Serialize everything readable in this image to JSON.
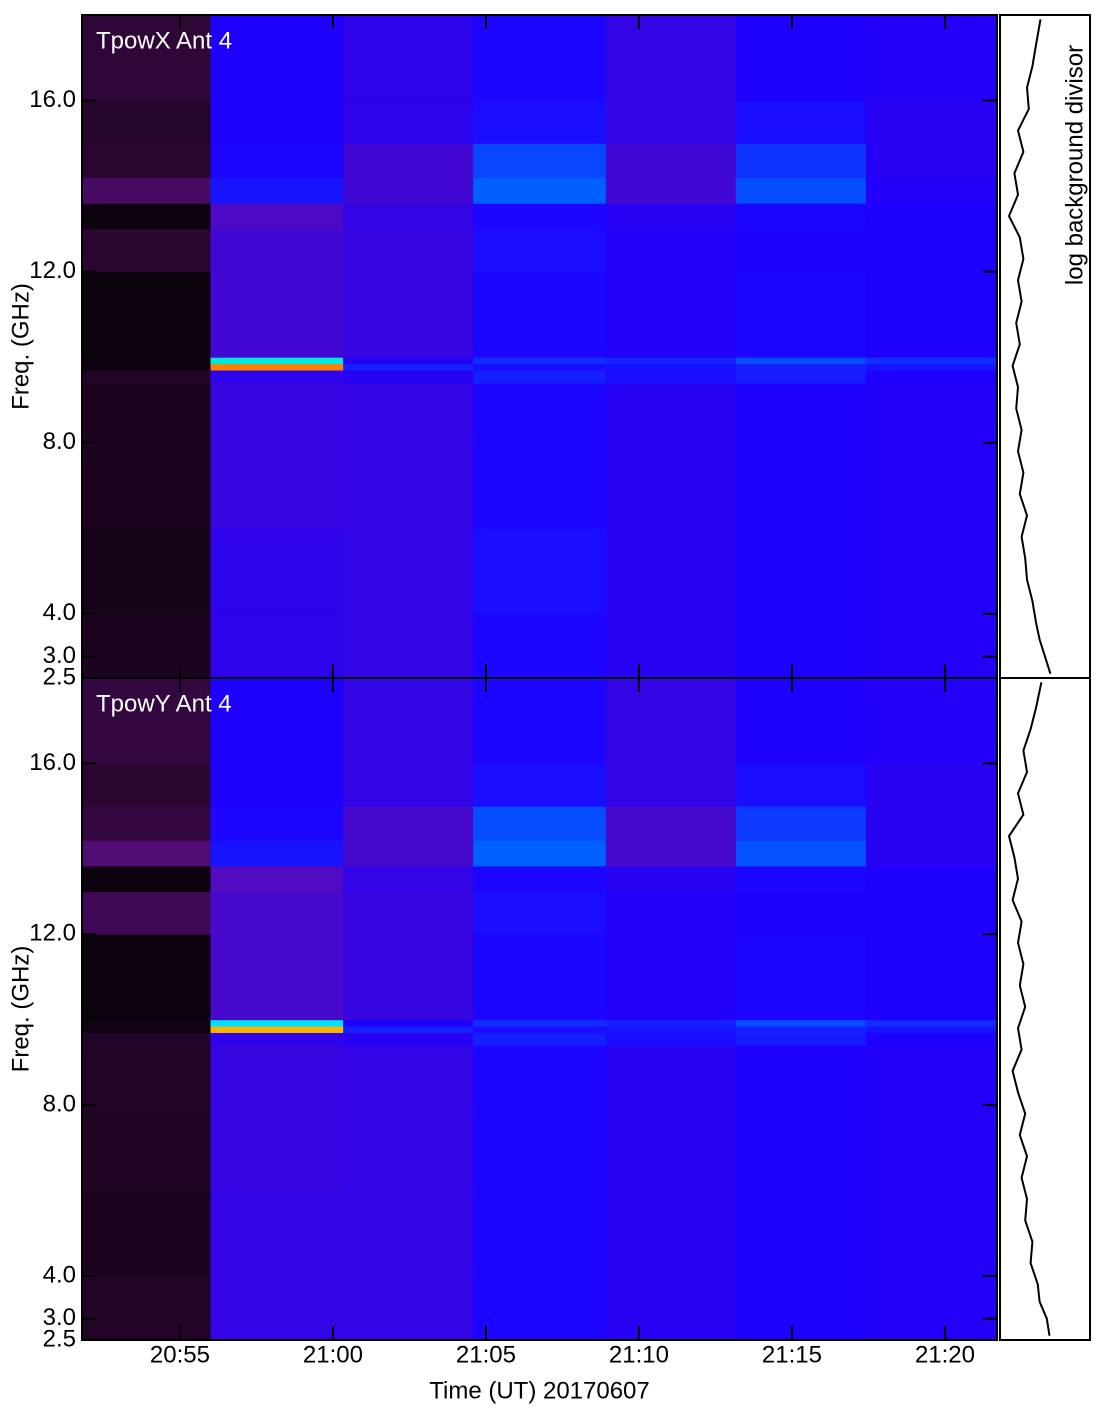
{
  "chart_data": [
    {
      "type": "heatmap",
      "title": "TpowX Ant 4",
      "ylabel": "Freq. (GHz)",
      "xlim": [
        "20:51:48",
        "21:21:42"
      ],
      "xticks": [
        "20:55",
        "21:00",
        "21:05",
        "21:10",
        "21:15",
        "21:20"
      ],
      "ylim": [
        2.5,
        18
      ],
      "yticks": [
        {
          "value": 2.5,
          "label": "2.5"
        },
        {
          "value": 3,
          "label": "3.0"
        },
        {
          "value": 4,
          "label": "4.0"
        },
        {
          "value": 8,
          "label": "8.0"
        },
        {
          "value": 12,
          "label": "12.0"
        },
        {
          "value": 16,
          "label": "16.0"
        }
      ],
      "x_edges": [
        "20:51:48",
        "20:56:00",
        "21:00:20",
        "21:04:35",
        "21:08:55",
        "21:13:10",
        "21:17:25",
        "21:21:42"
      ],
      "y_edges": [
        2.5,
        4,
        6,
        8,
        9.4,
        9.7,
        9.85,
        10,
        12,
        13,
        13.6,
        14.2,
        15,
        16,
        18
      ],
      "colorscale": {
        "stops": [
          0,
          0.15,
          0.3,
          0.45,
          0.6,
          0.7,
          0.8,
          0.9,
          1
        ],
        "colors": [
          "#000000",
          "#2a0630",
          "#6a10a0",
          "#1e00ff",
          "#0060ff",
          "#00e0ff",
          "#00ff40",
          "#ffff00",
          "#ff0000"
        ]
      },
      "z": [
        [
          0.1,
          0.08,
          0.1,
          0.1,
          0.12,
          0.05,
          0.05,
          0.04,
          0.15,
          0.05,
          0.22,
          0.15,
          0.14,
          0.16
        ],
        [
          0.42,
          0.42,
          0.4,
          0.4,
          0.42,
          0.95,
          0.72,
          0.38,
          0.38,
          0.36,
          0.48,
          0.46,
          0.45,
          0.45
        ],
        [
          0.41,
          0.41,
          0.41,
          0.41,
          0.43,
          0.5,
          0.44,
          0.4,
          0.4,
          0.41,
          0.38,
          0.38,
          0.42,
          0.42
        ],
        [
          0.46,
          0.47,
          0.46,
          0.46,
          0.5,
          0.47,
          0.52,
          0.46,
          0.47,
          0.46,
          0.6,
          0.56,
          0.47,
          0.46
        ],
        [
          0.43,
          0.43,
          0.43,
          0.43,
          0.47,
          0.48,
          0.5,
          0.44,
          0.44,
          0.43,
          0.38,
          0.38,
          0.41,
          0.41
        ],
        [
          0.45,
          0.45,
          0.45,
          0.45,
          0.49,
          0.5,
          0.57,
          0.46,
          0.45,
          0.46,
          0.57,
          0.53,
          0.47,
          0.45
        ],
        [
          0.44,
          0.44,
          0.44,
          0.44,
          0.45,
          0.48,
          0.52,
          0.45,
          0.45,
          0.45,
          0.44,
          0.43,
          0.43,
          0.44
        ]
      ],
      "profile": {
        "label": "log background divisor",
        "xlim": [
          0,
          1
        ],
        "y": [
          2.6,
          3.0,
          3.4,
          3.8,
          4.3,
          4.8,
          5.3,
          5.8,
          6.3,
          6.8,
          7.3,
          7.8,
          8.3,
          8.8,
          9.3,
          9.8,
          10.3,
          10.8,
          11.3,
          11.8,
          12.3,
          12.8,
          13.3,
          13.8,
          14.3,
          14.8,
          15.3,
          15.8,
          16.3,
          16.8,
          17.3,
          17.9
        ],
        "x": [
          0.56,
          0.5,
          0.44,
          0.4,
          0.36,
          0.3,
          0.28,
          0.24,
          0.3,
          0.22,
          0.26,
          0.2,
          0.24,
          0.18,
          0.2,
          0.14,
          0.22,
          0.18,
          0.24,
          0.2,
          0.26,
          0.22,
          0.1,
          0.2,
          0.16,
          0.26,
          0.2,
          0.32,
          0.3,
          0.36,
          0.4,
          0.45
        ]
      }
    },
    {
      "type": "heatmap",
      "title": "TpowY Ant 4",
      "ylabel": "Freq. (GHz)",
      "xlabel": "Time (UT) 20170607",
      "xlim": [
        "20:51:48",
        "21:21:42"
      ],
      "xticks": [
        "20:55",
        "21:00",
        "21:05",
        "21:10",
        "21:15",
        "21:20"
      ],
      "ylim": [
        2.5,
        18
      ],
      "yticks": [
        {
          "value": 2.5,
          "label": "2.5"
        },
        {
          "value": 3,
          "label": "3.0"
        },
        {
          "value": 4,
          "label": "4.0"
        },
        {
          "value": 8,
          "label": "8.0"
        },
        {
          "value": 12,
          "label": "12.0"
        },
        {
          "value": 16,
          "label": "16.0"
        }
      ],
      "x_edges": [
        "20:51:48",
        "20:56:00",
        "21:00:20",
        "21:04:35",
        "21:08:55",
        "21:13:10",
        "21:17:25",
        "21:21:42"
      ],
      "y_edges": [
        2.5,
        4,
        6,
        8,
        9.4,
        9.7,
        9.85,
        10,
        12,
        13,
        13.6,
        14.2,
        15,
        16,
        18
      ],
      "colorscale": {
        "stops": [
          0,
          0.15,
          0.3,
          0.45,
          0.6,
          0.7,
          0.8,
          0.9,
          1
        ],
        "colors": [
          "#000000",
          "#2a0630",
          "#6a10a0",
          "#1e00ff",
          "#0060ff",
          "#00e0ff",
          "#00ff40",
          "#ffff00",
          "#ff0000"
        ]
      },
      "z": [
        [
          0.12,
          0.1,
          0.11,
          0.12,
          0.13,
          0.05,
          0.06,
          0.04,
          0.2,
          0.04,
          0.24,
          0.17,
          0.15,
          0.17
        ],
        [
          0.41,
          0.41,
          0.4,
          0.4,
          0.42,
          0.93,
          0.7,
          0.37,
          0.37,
          0.35,
          0.48,
          0.46,
          0.45,
          0.45
        ],
        [
          0.41,
          0.41,
          0.41,
          0.41,
          0.43,
          0.5,
          0.45,
          0.4,
          0.4,
          0.41,
          0.37,
          0.37,
          0.41,
          0.41
        ],
        [
          0.46,
          0.46,
          0.46,
          0.46,
          0.5,
          0.47,
          0.52,
          0.46,
          0.47,
          0.46,
          0.6,
          0.57,
          0.47,
          0.46
        ],
        [
          0.43,
          0.43,
          0.43,
          0.43,
          0.47,
          0.48,
          0.5,
          0.44,
          0.44,
          0.43,
          0.37,
          0.37,
          0.41,
          0.41
        ],
        [
          0.45,
          0.45,
          0.45,
          0.45,
          0.49,
          0.5,
          0.57,
          0.46,
          0.45,
          0.46,
          0.58,
          0.54,
          0.47,
          0.45
        ],
        [
          0.44,
          0.44,
          0.44,
          0.44,
          0.45,
          0.48,
          0.52,
          0.45,
          0.45,
          0.45,
          0.43,
          0.43,
          0.43,
          0.44
        ]
      ],
      "profile": {
        "xlim": [
          0,
          1
        ],
        "y": [
          2.6,
          3.0,
          3.4,
          3.8,
          4.3,
          4.8,
          5.3,
          5.8,
          6.3,
          6.8,
          7.3,
          7.8,
          8.3,
          8.8,
          9.3,
          9.8,
          10.3,
          10.8,
          11.3,
          11.8,
          12.3,
          12.8,
          13.3,
          13.8,
          14.3,
          14.8,
          15.3,
          15.8,
          16.3,
          16.8,
          17.3,
          17.9
        ],
        "x": [
          0.55,
          0.52,
          0.44,
          0.42,
          0.34,
          0.36,
          0.28,
          0.3,
          0.24,
          0.3,
          0.22,
          0.28,
          0.2,
          0.14,
          0.24,
          0.2,
          0.28,
          0.22,
          0.26,
          0.2,
          0.24,
          0.14,
          0.2,
          0.16,
          0.1,
          0.26,
          0.2,
          0.3,
          0.26,
          0.34,
          0.4,
          0.46
        ]
      }
    }
  ]
}
